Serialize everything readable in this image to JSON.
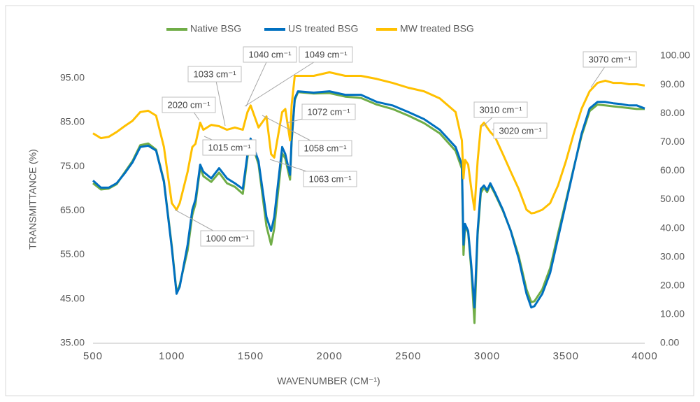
{
  "chart_data": {
    "type": "line",
    "x_label": "WAVENUMBER (CM⁻¹)",
    "y_label": "TRANSMITTANCE (%)",
    "x": [
      500,
      550,
      600,
      650,
      700,
      750,
      800,
      850,
      900,
      950,
      1000,
      1030,
      1050,
      1100,
      1130,
      1150,
      1180,
      1200,
      1250,
      1300,
      1350,
      1400,
      1450,
      1480,
      1500,
      1550,
      1600,
      1630,
      1650,
      1700,
      1720,
      1750,
      1760,
      1780,
      1800,
      1900,
      2000,
      2100,
      2200,
      2300,
      2400,
      2500,
      2600,
      2700,
      2800,
      2840,
      2850,
      2860,
      2880,
      2900,
      2920,
      2940,
      2960,
      2980,
      3000,
      3020,
      3050,
      3100,
      3150,
      3200,
      3250,
      3280,
      3300,
      3350,
      3400,
      3450,
      3500,
      3550,
      3600,
      3650,
      3700,
      3750,
      3800,
      3850,
      3900,
      3950,
      4000
    ],
    "series": [
      {
        "name": "Native BSG",
        "color": "#70ad47",
        "values": [
          71.2,
          69.8,
          70.0,
          71.0,
          73.6,
          76.2,
          79.8,
          80.2,
          78.8,
          71.8,
          57.0,
          46.5,
          48.2,
          56.0,
          64.0,
          66.5,
          74.8,
          72.8,
          71.5,
          73.6,
          71.2,
          70.4,
          68.8,
          77.0,
          81.0,
          75.5,
          61.5,
          57.3,
          61.0,
          78.0,
          76.8,
          72.0,
          80.5,
          90.0,
          91.8,
          91.5,
          91.6,
          90.8,
          90.5,
          89.0,
          88.0,
          86.5,
          84.8,
          82.5,
          78.5,
          74.5,
          55.0,
          61.5,
          60.0,
          51.5,
          39.6,
          59.5,
          69.0,
          70.2,
          69.2,
          70.8,
          68.8,
          65.0,
          60.5,
          54.8,
          47.2,
          44.3,
          44.5,
          47.2,
          52.0,
          59.8,
          67.2,
          74.8,
          82.0,
          87.5,
          89.0,
          88.8,
          88.6,
          88.4,
          88.2,
          88.0,
          88.0
        ]
      },
      {
        "name": "US treated BSG",
        "color": "#0070c0",
        "values": [
          71.8,
          70.2,
          70.2,
          71.2,
          73.4,
          75.9,
          79.4,
          79.7,
          78.6,
          71.5,
          56.5,
          46.2,
          47.8,
          57.3,
          65.2,
          67.5,
          75.4,
          73.8,
          72.3,
          74.6,
          72.3,
          71.2,
          69.9,
          77.8,
          81.3,
          76.2,
          63.6,
          60.4,
          63.6,
          79.4,
          77.8,
          73.1,
          81.0,
          90.4,
          92.0,
          91.7,
          92.0,
          91.2,
          91.2,
          89.6,
          88.8,
          87.3,
          85.7,
          83.3,
          79.4,
          75.4,
          57.3,
          62.0,
          60.4,
          52.5,
          43.1,
          60.4,
          69.9,
          70.7,
          69.6,
          71.2,
          69.1,
          65.2,
          60.4,
          54.1,
          46.2,
          43.1,
          43.4,
          46.2,
          50.9,
          58.8,
          66.7,
          74.6,
          82.5,
          88.1,
          89.6,
          89.6,
          89.3,
          89.1,
          88.8,
          88.8,
          88.1
        ]
      },
      {
        "name": "MW treated BSG",
        "color": "#ffc000",
        "values": [
          82.5,
          81.4,
          81.7,
          82.8,
          84.1,
          85.3,
          87.3,
          87.6,
          86.5,
          79.4,
          66.7,
          65.2,
          66.7,
          73.8,
          79.4,
          80.1,
          84.9,
          83.3,
          84.4,
          84.1,
          83.3,
          83.8,
          83.3,
          87.3,
          88.8,
          83.8,
          86.3,
          77.8,
          77.0,
          87.3,
          88.0,
          80.9,
          88.8,
          95.5,
          95.5,
          95.5,
          96.3,
          95.5,
          95.5,
          94.8,
          93.9,
          92.8,
          92.0,
          90.4,
          87.3,
          80.9,
          72.3,
          76.5,
          75.4,
          69.9,
          65.2,
          76.2,
          84.1,
          84.9,
          83.8,
          82.8,
          81.7,
          77.8,
          73.8,
          69.9,
          65.2,
          64.4,
          64.5,
          65.2,
          66.7,
          70.7,
          76.2,
          82.5,
          88.1,
          92.0,
          93.9,
          94.4,
          93.9,
          93.9,
          93.6,
          93.6,
          93.3
        ]
      }
    ],
    "xlim": [
      500,
      4000
    ],
    "xticks": [
      500,
      1000,
      1500,
      2000,
      2500,
      3000,
      3500,
      4000
    ],
    "ylim": [
      35,
      100
    ],
    "yticks": [
      {
        "value": 35,
        "label": "35.00"
      },
      {
        "value": 45,
        "label": "45.00"
      },
      {
        "value": 55,
        "label": "55.00"
      },
      {
        "value": 65,
        "label": "65.00"
      },
      {
        "value": 75,
        "label": "75.00"
      },
      {
        "value": 85,
        "label": "85.00"
      },
      {
        "value": 95,
        "label": "95.00"
      }
    ],
    "y2lim": [
      0,
      100
    ],
    "y2ticks": [
      {
        "value": 0,
        "label": "0.00"
      },
      {
        "value": 10,
        "label": "10.00"
      },
      {
        "value": 20,
        "label": "20.00"
      },
      {
        "value": 30,
        "label": "30.00"
      },
      {
        "value": 40,
        "label": "40.00"
      },
      {
        "value": 50,
        "label": "50.00"
      },
      {
        "value": 60,
        "label": "60.00"
      },
      {
        "value": 70,
        "label": "70.00"
      },
      {
        "value": 80,
        "label": "80.00"
      },
      {
        "value": 90,
        "label": "90.00"
      },
      {
        "value": 100,
        "label": "100.00"
      }
    ],
    "grid": false,
    "legend": "top",
    "annotations": [
      "3070 cm⁻¹",
      "1040 cm⁻¹",
      "1049 cm⁻¹",
      "1033 cm⁻¹",
      "2020 cm⁻¹",
      "1015 cm⁻¹",
      "1072 cm⁻¹",
      "1058 cm⁻¹",
      "1063 cm⁻¹",
      "3010 cm⁻¹",
      "3020 cm⁻¹",
      "1000 cm⁻¹"
    ]
  }
}
